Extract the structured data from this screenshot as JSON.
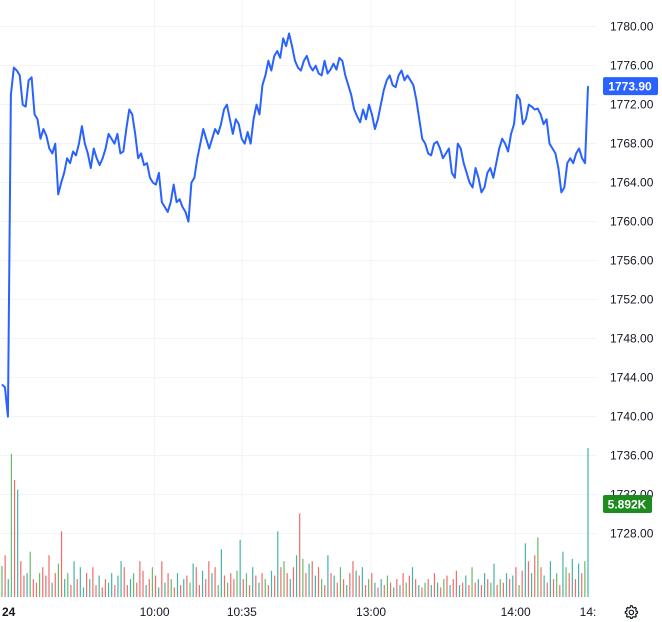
{
  "chart_data": {
    "type": "line",
    "y_ticks": [
      "1780.00",
      "1776.00",
      "1772.00",
      "1768.00",
      "1764.00",
      "1760.00",
      "1756.00",
      "1752.00",
      "1748.00",
      "1744.00",
      "1740.00",
      "1736.00",
      "1732.00",
      "1728.00"
    ],
    "y_tick_values": [
      1780,
      1776,
      1772,
      1768,
      1764,
      1760,
      1756,
      1752,
      1748,
      1744,
      1740,
      1736,
      1732,
      1728
    ],
    "ylim": [
      1725.6,
      1781.3
    ],
    "x_ticks": [
      {
        "label": "24",
        "pos": 0.0
      },
      {
        "label": "10:00",
        "pos": 0.2604
      },
      {
        "label": "10:35",
        "pos": 0.4093
      },
      {
        "label": "13:00",
        "pos": 0.6298
      },
      {
        "label": "14:00",
        "pos": 0.8765
      },
      {
        "label": "14:",
        "pos": 1.0
      }
    ],
    "grid": true,
    "price_series": [
      1743.3,
      1743.0,
      1740.0,
      1773.0,
      1775.8,
      1775.5,
      1775.0,
      1772.0,
      1771.8,
      1774.5,
      1774.8,
      1771.0,
      1770.5,
      1768.5,
      1769.5,
      1768.8,
      1767.5,
      1767.0,
      1768.0,
      1762.8,
      1764.0,
      1765.0,
      1766.5,
      1766.0,
      1767.2,
      1766.8,
      1768.0,
      1769.8,
      1768.0,
      1767.0,
      1765.5,
      1767.5,
      1766.5,
      1765.8,
      1766.5,
      1767.5,
      1769.0,
      1768.5,
      1768.0,
      1769.0,
      1767.0,
      1767.2,
      1769.5,
      1771.5,
      1771.0,
      1769.0,
      1766.5,
      1767.0,
      1765.8,
      1766.0,
      1764.5,
      1764.0,
      1763.8,
      1765.0,
      1762.0,
      1761.5,
      1761.0,
      1762.0,
      1763.8,
      1762.0,
      1762.3,
      1761.5,
      1761.0,
      1760.0,
      1764.0,
      1764.5,
      1766.5,
      1768.0,
      1769.5,
      1768.5,
      1767.5,
      1768.5,
      1769.5,
      1769.0,
      1770.0,
      1771.5,
      1772.0,
      1770.5,
      1769.0,
      1770.5,
      1770.0,
      1768.5,
      1768.0,
      1769.2,
      1768.0,
      1770.5,
      1772.0,
      1771.0,
      1774.0,
      1775.0,
      1776.5,
      1775.5,
      1777.0,
      1777.5,
      1776.8,
      1778.8,
      1778.0,
      1779.3,
      1778.0,
      1776.5,
      1775.8,
      1775.5,
      1776.5,
      1777.0,
      1776.0,
      1775.5,
      1776.0,
      1775.2,
      1775.0,
      1776.5,
      1775.2,
      1775.6,
      1776.2,
      1775.6,
      1776.8,
      1776.5,
      1775.0,
      1774.0,
      1773.0,
      1771.5,
      1770.8,
      1770.2,
      1771.5,
      1770.5,
      1772.0,
      1771.0,
      1769.5,
      1770.5,
      1772.0,
      1773.5,
      1774.5,
      1775.0,
      1774.0,
      1773.8,
      1775.0,
      1775.5,
      1774.5,
      1775.0,
      1774.5,
      1774.0,
      1772.5,
      1770.5,
      1768.5,
      1768.0,
      1767.0,
      1766.8,
      1768.0,
      1768.2,
      1767.5,
      1766.5,
      1767.0,
      1767.5,
      1765.0,
      1764.5,
      1768.0,
      1767.5,
      1766.0,
      1765.0,
      1764.0,
      1763.5,
      1765.5,
      1764.5,
      1763.0,
      1763.5,
      1765.0,
      1765.5,
      1764.5,
      1766.0,
      1767.5,
      1768.5,
      1768.0,
      1767.2,
      1769.0,
      1770.0,
      1773.0,
      1772.5,
      1770.0,
      1770.5,
      1772.0,
      1771.8,
      1771.5,
      1771.6,
      1771.0,
      1770.0,
      1770.5,
      1768.0,
      1767.5,
      1767.0,
      1765.5,
      1763.0,
      1763.5,
      1766.0,
      1766.5,
      1766.0,
      1767.0,
      1767.5,
      1766.5,
      1766.0,
      1773.9
    ],
    "last_price_label": "1773.90",
    "volume_label": "5.892K",
    "volume_series": [
      {
        "v": 2.6,
        "c": "g"
      },
      {
        "v": 3.5,
        "c": "r"
      },
      {
        "v": 1.5,
        "c": "g"
      },
      {
        "v": 12.0,
        "c": "g"
      },
      {
        "v": 9.8,
        "c": "r"
      },
      {
        "v": 9.0,
        "c": "g"
      },
      {
        "v": 3.0,
        "c": "r"
      },
      {
        "v": 1.8,
        "c": "r"
      },
      {
        "v": 2.0,
        "c": "g"
      },
      {
        "v": 3.8,
        "c": "g"
      },
      {
        "v": 1.5,
        "c": "r"
      },
      {
        "v": 1.2,
        "c": "r"
      },
      {
        "v": 2.0,
        "c": "g"
      },
      {
        "v": 2.5,
        "c": "r"
      },
      {
        "v": 1.8,
        "c": "r"
      },
      {
        "v": 3.5,
        "c": "r"
      },
      {
        "v": 1.2,
        "c": "g"
      },
      {
        "v": 2.0,
        "c": "r"
      },
      {
        "v": 2.8,
        "c": "g"
      },
      {
        "v": 5.5,
        "c": "r"
      },
      {
        "v": 1.5,
        "c": "g"
      },
      {
        "v": 2.0,
        "c": "g"
      },
      {
        "v": 1.0,
        "c": "r"
      },
      {
        "v": 3.0,
        "c": "g"
      },
      {
        "v": 1.5,
        "c": "r"
      },
      {
        "v": 2.5,
        "c": "g"
      },
      {
        "v": 0.8,
        "c": "g"
      },
      {
        "v": 2.0,
        "c": "r"
      },
      {
        "v": 1.5,
        "c": "g"
      },
      {
        "v": 2.5,
        "c": "r"
      },
      {
        "v": 1.0,
        "c": "r"
      },
      {
        "v": 1.8,
        "c": "g"
      },
      {
        "v": 0.8,
        "c": "r"
      },
      {
        "v": 1.5,
        "c": "r"
      },
      {
        "v": 1.2,
        "c": "g"
      },
      {
        "v": 2.0,
        "c": "g"
      },
      {
        "v": 1.0,
        "c": "r"
      },
      {
        "v": 1.8,
        "c": "g"
      },
      {
        "v": 3.0,
        "c": "g"
      },
      {
        "v": 2.5,
        "c": "r"
      },
      {
        "v": 1.0,
        "c": "r"
      },
      {
        "v": 1.5,
        "c": "g"
      },
      {
        "v": 2.0,
        "c": "g"
      },
      {
        "v": 1.2,
        "c": "r"
      },
      {
        "v": 3.0,
        "c": "r"
      },
      {
        "v": 2.2,
        "c": "r"
      },
      {
        "v": 1.0,
        "c": "g"
      },
      {
        "v": 1.5,
        "c": "r"
      },
      {
        "v": 2.5,
        "c": "g"
      },
      {
        "v": 1.8,
        "c": "r"
      },
      {
        "v": 0.8,
        "c": "g"
      },
      {
        "v": 3.0,
        "c": "r"
      },
      {
        "v": 1.2,
        "c": "g"
      },
      {
        "v": 2.0,
        "c": "r"
      },
      {
        "v": 1.5,
        "c": "g"
      },
      {
        "v": 0.8,
        "c": "r"
      },
      {
        "v": 2.0,
        "c": "g"
      },
      {
        "v": 1.0,
        "c": "r"
      },
      {
        "v": 1.5,
        "c": "g"
      },
      {
        "v": 1.8,
        "c": "r"
      },
      {
        "v": 1.2,
        "c": "g"
      },
      {
        "v": 2.8,
        "c": "g"
      },
      {
        "v": 2.5,
        "c": "r"
      },
      {
        "v": 1.0,
        "c": "r"
      },
      {
        "v": 2.2,
        "c": "g"
      },
      {
        "v": 1.5,
        "c": "r"
      },
      {
        "v": 3.0,
        "c": "r"
      },
      {
        "v": 2.0,
        "c": "g"
      },
      {
        "v": 2.5,
        "c": "r"
      },
      {
        "v": 1.0,
        "c": "g"
      },
      {
        "v": 4.0,
        "c": "g"
      },
      {
        "v": 1.8,
        "c": "r"
      },
      {
        "v": 1.2,
        "c": "g"
      },
      {
        "v": 2.0,
        "c": "r"
      },
      {
        "v": 1.5,
        "c": "r"
      },
      {
        "v": 2.2,
        "c": "g"
      },
      {
        "v": 4.8,
        "c": "g"
      },
      {
        "v": 1.5,
        "c": "r"
      },
      {
        "v": 2.0,
        "c": "g"
      },
      {
        "v": 1.0,
        "c": "r"
      },
      {
        "v": 2.5,
        "c": "g"
      },
      {
        "v": 1.8,
        "c": "r"
      },
      {
        "v": 1.2,
        "c": "g"
      },
      {
        "v": 2.0,
        "c": "r"
      },
      {
        "v": 1.5,
        "c": "g"
      },
      {
        "v": 1.0,
        "c": "r"
      },
      {
        "v": 2.2,
        "c": "g"
      },
      {
        "v": 1.8,
        "c": "r"
      },
      {
        "v": 5.5,
        "c": "g"
      },
      {
        "v": 2.5,
        "c": "r"
      },
      {
        "v": 3.0,
        "c": "g"
      },
      {
        "v": 2.0,
        "c": "r"
      },
      {
        "v": 1.5,
        "c": "g"
      },
      {
        "v": 2.5,
        "c": "r"
      },
      {
        "v": 3.5,
        "c": "g"
      },
      {
        "v": 7.0,
        "c": "r"
      },
      {
        "v": 3.2,
        "c": "g"
      },
      {
        "v": 2.0,
        "c": "r"
      },
      {
        "v": 2.8,
        "c": "g"
      },
      {
        "v": 3.0,
        "c": "r"
      },
      {
        "v": 1.8,
        "c": "g"
      },
      {
        "v": 2.5,
        "c": "r"
      },
      {
        "v": 1.5,
        "c": "g"
      },
      {
        "v": 1.0,
        "c": "r"
      },
      {
        "v": 3.5,
        "c": "g"
      },
      {
        "v": 2.0,
        "c": "r"
      },
      {
        "v": 1.8,
        "c": "g"
      },
      {
        "v": 1.2,
        "c": "r"
      },
      {
        "v": 2.5,
        "c": "g"
      },
      {
        "v": 1.5,
        "c": "r"
      },
      {
        "v": 1.0,
        "c": "g"
      },
      {
        "v": 2.0,
        "c": "r"
      },
      {
        "v": 3.0,
        "c": "r"
      },
      {
        "v": 2.2,
        "c": "g"
      },
      {
        "v": 1.8,
        "c": "r"
      },
      {
        "v": 2.5,
        "c": "g"
      },
      {
        "v": 1.0,
        "c": "r"
      },
      {
        "v": 1.5,
        "c": "g"
      },
      {
        "v": 2.0,
        "c": "r"
      },
      {
        "v": 1.2,
        "c": "g"
      },
      {
        "v": 0.8,
        "c": "r"
      },
      {
        "v": 1.5,
        "c": "g"
      },
      {
        "v": 1.0,
        "c": "r"
      },
      {
        "v": 1.8,
        "c": "g"
      },
      {
        "v": 1.2,
        "c": "r"
      },
      {
        "v": 0.8,
        "c": "g"
      },
      {
        "v": 1.5,
        "c": "r"
      },
      {
        "v": 1.0,
        "c": "g"
      },
      {
        "v": 2.0,
        "c": "r"
      },
      {
        "v": 1.2,
        "c": "g"
      },
      {
        "v": 1.8,
        "c": "r"
      },
      {
        "v": 2.5,
        "c": "g"
      },
      {
        "v": 1.5,
        "c": "r"
      },
      {
        "v": 1.0,
        "c": "g"
      },
      {
        "v": 0.8,
        "c": "r"
      },
      {
        "v": 1.2,
        "c": "g"
      },
      {
        "v": 1.5,
        "c": "r"
      },
      {
        "v": 1.0,
        "c": "g"
      },
      {
        "v": 2.0,
        "c": "r"
      },
      {
        "v": 1.2,
        "c": "g"
      },
      {
        "v": 0.8,
        "c": "r"
      },
      {
        "v": 1.5,
        "c": "g"
      },
      {
        "v": 1.8,
        "c": "r"
      },
      {
        "v": 1.0,
        "c": "g"
      },
      {
        "v": 1.5,
        "c": "r"
      },
      {
        "v": 2.2,
        "c": "r"
      },
      {
        "v": 1.0,
        "c": "g"
      },
      {
        "v": 1.2,
        "c": "r"
      },
      {
        "v": 1.8,
        "c": "g"
      },
      {
        "v": 1.0,
        "c": "r"
      },
      {
        "v": 2.5,
        "c": "g"
      },
      {
        "v": 1.2,
        "c": "r"
      },
      {
        "v": 1.5,
        "c": "g"
      },
      {
        "v": 1.0,
        "c": "r"
      },
      {
        "v": 2.0,
        "c": "g"
      },
      {
        "v": 1.5,
        "c": "r"
      },
      {
        "v": 1.2,
        "c": "g"
      },
      {
        "v": 2.8,
        "c": "g"
      },
      {
        "v": 1.0,
        "c": "r"
      },
      {
        "v": 1.5,
        "c": "g"
      },
      {
        "v": 1.2,
        "c": "r"
      },
      {
        "v": 2.0,
        "c": "g"
      },
      {
        "v": 1.5,
        "c": "r"
      },
      {
        "v": 1.8,
        "c": "g"
      },
      {
        "v": 2.5,
        "c": "r"
      },
      {
        "v": 1.0,
        "c": "g"
      },
      {
        "v": 2.2,
        "c": "r"
      },
      {
        "v": 4.5,
        "c": "g"
      },
      {
        "v": 3.0,
        "c": "r"
      },
      {
        "v": 2.0,
        "c": "g"
      },
      {
        "v": 3.5,
        "c": "r"
      },
      {
        "v": 5.0,
        "c": "g"
      },
      {
        "v": 2.5,
        "c": "r"
      },
      {
        "v": 1.8,
        "c": "g"
      },
      {
        "v": 1.2,
        "c": "r"
      },
      {
        "v": 3.0,
        "c": "g"
      },
      {
        "v": 1.5,
        "c": "r"
      },
      {
        "v": 2.0,
        "c": "g"
      },
      {
        "v": 1.0,
        "c": "r"
      },
      {
        "v": 3.8,
        "c": "g"
      },
      {
        "v": 2.5,
        "c": "g"
      },
      {
        "v": 2.0,
        "c": "r"
      },
      {
        "v": 3.2,
        "c": "g"
      },
      {
        "v": 1.5,
        "c": "r"
      },
      {
        "v": 2.8,
        "c": "g"
      },
      {
        "v": 2.0,
        "c": "r"
      },
      {
        "v": 3.0,
        "c": "g"
      },
      {
        "v": 12.5,
        "c": "g"
      }
    ],
    "volume_max_ref": 14.0
  },
  "colors": {
    "line": "#2962ff",
    "price_badge": "#2962ff",
    "volume_badge": "#1e8b1e",
    "volume_up": "#26a69a",
    "volume_up_alt": "#4caf50",
    "volume_down": "#ef5350",
    "grid": "#f0f3fa",
    "axis_text": "#131722"
  },
  "icons": {
    "settings": "gear-icon"
  }
}
